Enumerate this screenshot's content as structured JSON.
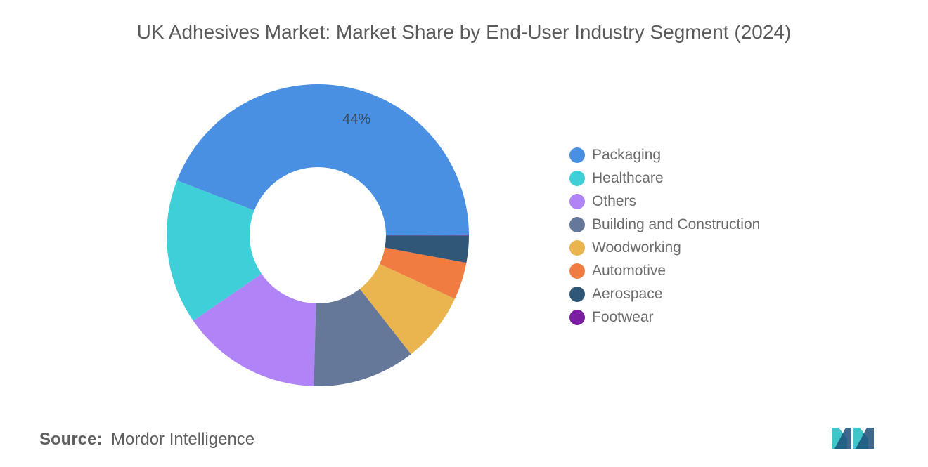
{
  "chart_data": {
    "type": "pie",
    "title": "UK Adhesives Market: Market Share by End-User Industry Segment (2024)",
    "categories": [
      "Packaging",
      "Healthcare",
      "Others",
      "Building and Construction",
      "Woodworking",
      "Automotive",
      "Aerospace",
      "Footwear"
    ],
    "values": [
      44,
      15.5,
      15,
      11,
      7.5,
      4,
      2.9,
      0.1
    ],
    "data_labels": [
      "44%",
      "",
      "",
      "",
      "",
      "",
      "",
      ""
    ],
    "colors": [
      "#4a90e2",
      "#3ecfd8",
      "#b084f7",
      "#66789a",
      "#eab54f",
      "#f07c42",
      "#2f5878",
      "#7b1fa2"
    ],
    "legend_position": "right",
    "donut": true
  },
  "source": {
    "label": "Source:",
    "text": "Mordor Intelligence"
  },
  "logo": {
    "icon": "mordor-intelligence-logo-icon",
    "colors": [
      "#1f4e79",
      "#3ec6c8"
    ]
  }
}
